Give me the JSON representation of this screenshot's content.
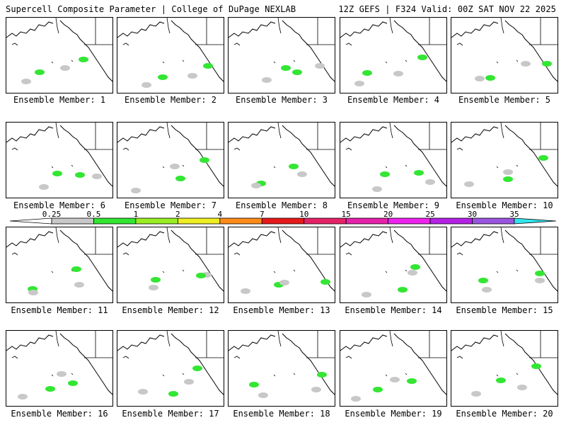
{
  "header": {
    "left_title": "Supercell Composite Parameter | College of DuPage NEXLAB",
    "right_title": "12Z GEFS | F324 Valid: 00Z SAT NOV 22 2025"
  },
  "members": [
    {
      "label": "Ensemble Member: 1"
    },
    {
      "label": "Ensemble Member: 2"
    },
    {
      "label": "Ensemble Member: 3"
    },
    {
      "label": "Ensemble Member: 4"
    },
    {
      "label": "Ensemble Member: 5"
    },
    {
      "label": "Ensemble Member: 6"
    },
    {
      "label": "Ensemble Member: 7"
    },
    {
      "label": "Ensemble Member: 8"
    },
    {
      "label": "Ensemble Member: 9"
    },
    {
      "label": "Ensemble Member: 10"
    },
    {
      "label": "Ensemble Member: 11"
    },
    {
      "label": "Ensemble Member: 12"
    },
    {
      "label": "Ensemble Member: 13"
    },
    {
      "label": "Ensemble Member: 14"
    },
    {
      "label": "Ensemble Member: 15"
    },
    {
      "label": "Ensemble Member: 16"
    },
    {
      "label": "Ensemble Member: 17"
    },
    {
      "label": "Ensemble Member: 18"
    },
    {
      "label": "Ensemble Member: 19"
    },
    {
      "label": "Ensemble Member: 20"
    }
  ],
  "colorbar": {
    "thresholds": [
      "0.25",
      "0.5",
      "1",
      "2",
      "4",
      "7",
      "10",
      "15",
      "20",
      "25",
      "30",
      "35"
    ],
    "colors": [
      "#c8c8c8",
      "#33e633",
      "#99ee22",
      "#eeee22",
      "#ff8c1a",
      "#e61a1a",
      "#e62266",
      "#e622aa",
      "#ee22ee",
      "#b422e6",
      "#9955dd",
      "#33e6ee"
    ]
  }
}
